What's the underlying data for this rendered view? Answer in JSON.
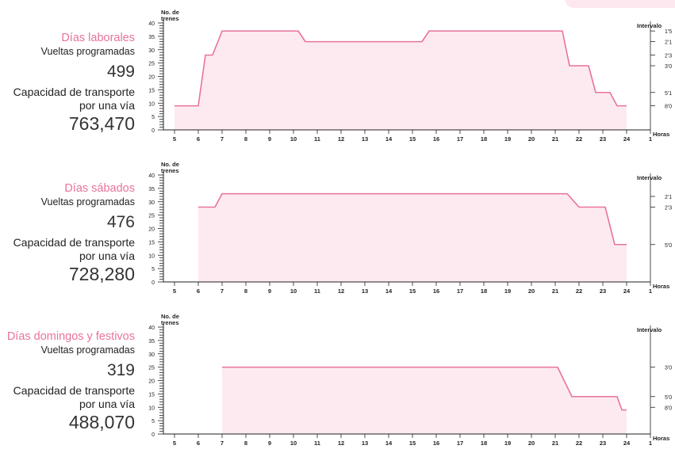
{
  "panels": [
    {
      "day_label": "Días laborales",
      "trips_label": "Vueltas programadas",
      "trips_value": "499",
      "capacity_label_line1": "Capacidad de transporte",
      "capacity_label_line2": "por una vía",
      "capacity_value": "763,470"
    },
    {
      "day_label": "Días sábados",
      "trips_label": "Vueltas programadas",
      "trips_value": "476",
      "capacity_label_line1": "Capacidad de transporte",
      "capacity_label_line2": "por una vía",
      "capacity_value": "728,280"
    },
    {
      "day_label": "Días domingos y festivos",
      "trips_label": "Vueltas programadas",
      "trips_value": "319",
      "capacity_label_line1": "Capacidad de transporte",
      "capacity_label_line2": "por una vía",
      "capacity_value": "488,070"
    }
  ],
  "colors": {
    "accent": "#e8739c",
    "fill": "#fdeaf0",
    "axis": "#222222"
  },
  "chart_data": [
    {
      "type": "area",
      "title": "Días laborales",
      "ylabel": "No. de trenes",
      "xlabel": "Horas",
      "right_axis_label": "Intervalo",
      "ylim": [
        0,
        40
      ],
      "xlim": [
        5,
        25
      ],
      "y_ticks": [
        0,
        5,
        10,
        15,
        20,
        25,
        30,
        35,
        40
      ],
      "x_ticks": [
        "5",
        "6",
        "7",
        "8",
        "9",
        "10",
        "11",
        "12",
        "13",
        "14",
        "15",
        "16",
        "17",
        "18",
        "19",
        "20",
        "21",
        "22",
        "23",
        "24",
        "1"
      ],
      "right_ticks": [
        {
          "label": "1'5",
          "y": 37
        },
        {
          "label": "2'1",
          "y": 33
        },
        {
          "label": "2'3",
          "y": 28
        },
        {
          "label": "3'0",
          "y": 24
        },
        {
          "label": "5'1",
          "y": 14
        },
        {
          "label": "8'0",
          "y": 9
        }
      ],
      "x": [
        5,
        6,
        6.3,
        6.6,
        7,
        10.2,
        10.5,
        15.4,
        15.7,
        21.3,
        21.6,
        22.4,
        22.7,
        23.3,
        23.6,
        24
      ],
      "y": [
        9,
        9,
        28,
        28,
        37,
        37,
        33,
        33,
        37,
        37,
        24,
        24,
        14,
        14,
        9,
        9
      ]
    },
    {
      "type": "area",
      "title": "Días sábados",
      "ylabel": "No. de trenes",
      "xlabel": "Horas",
      "right_axis_label": "Intervalo",
      "ylim": [
        0,
        40
      ],
      "xlim": [
        5,
        25
      ],
      "y_ticks": [
        0,
        5,
        10,
        15,
        20,
        25,
        30,
        35,
        40
      ],
      "x_ticks": [
        "5",
        "6",
        "7",
        "8",
        "9",
        "10",
        "11",
        "12",
        "13",
        "14",
        "15",
        "16",
        "17",
        "18",
        "19",
        "20",
        "21",
        "22",
        "23",
        "24",
        "1"
      ],
      "right_ticks": [
        {
          "label": "2'1",
          "y": 32
        },
        {
          "label": "2'3",
          "y": 28
        },
        {
          "label": "5'0",
          "y": 14
        }
      ],
      "x": [
        6,
        6.7,
        7,
        21.5,
        22,
        23.1,
        23.5,
        24
      ],
      "y": [
        28,
        28,
        33,
        33,
        28,
        28,
        14,
        14
      ]
    },
    {
      "type": "area",
      "title": "Días domingos y festivos",
      "ylabel": "No. de trenes",
      "xlabel": "Horas",
      "right_axis_label": "Intervalo",
      "ylim": [
        0,
        40
      ],
      "xlim": [
        5,
        25
      ],
      "y_ticks": [
        0,
        5,
        10,
        15,
        20,
        25,
        30,
        35,
        40
      ],
      "x_ticks": [
        "5",
        "6",
        "7",
        "8",
        "9",
        "10",
        "11",
        "12",
        "13",
        "14",
        "15",
        "16",
        "17",
        "18",
        "19",
        "20",
        "21",
        "22",
        "23",
        "24",
        "1"
      ],
      "right_ticks": [
        {
          "label": "3'0",
          "y": 25
        },
        {
          "label": "5'0",
          "y": 14
        },
        {
          "label": "8'0",
          "y": 10
        }
      ],
      "x": [
        7,
        21.1,
        21.7,
        23.6,
        23.8,
        24
      ],
      "y": [
        25,
        25,
        14,
        14,
        9,
        9
      ]
    }
  ]
}
